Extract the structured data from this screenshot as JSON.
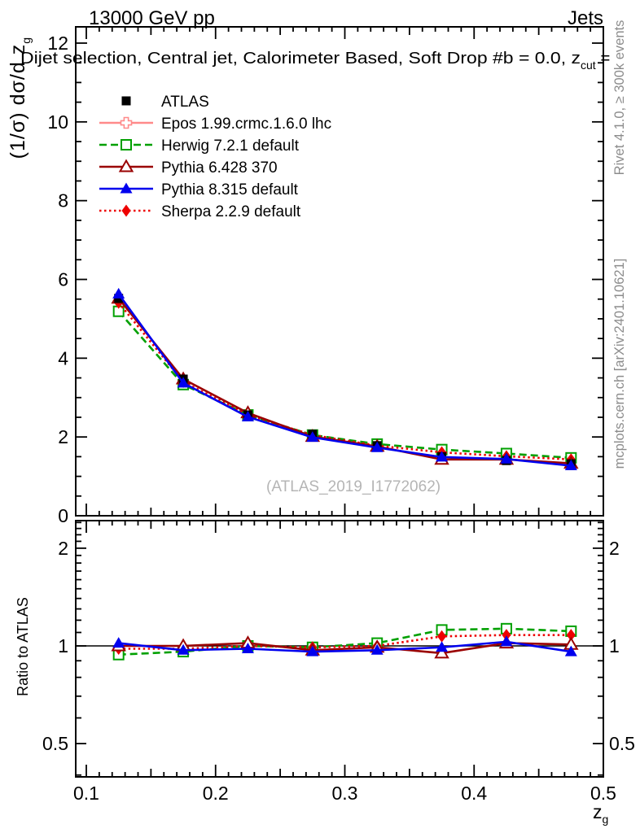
{
  "header": {
    "left_title": "13000 GeV pp",
    "right_title": "Jets"
  },
  "subtitle": {
    "text": "Dijet selection, Central jet, Calorimeter Based, Soft Drop #b = 0.0, z",
    "sub": "cut",
    "tail": " ="
  },
  "side_notes": {
    "top": "Rivet 4.1.0, ≥ 300k events",
    "bottom": "mcplots.cern.ch [arXiv:2401.10621]"
  },
  "watermark": "(ATLAS_2019_I1772062)",
  "chart_data": {
    "type": "line",
    "x": [
      0.125,
      0.175,
      0.225,
      0.275,
      0.325,
      0.375,
      0.425,
      0.475
    ],
    "xlim": [
      0.092,
      0.505
    ],
    "x_ticks": [
      0.1,
      0.2,
      0.3,
      0.4,
      0.5
    ],
    "xlabel_main": "z",
    "xlabel_sub": "g",
    "main_panel": {
      "ylabel_main": "(1/σ) dσ/d z",
      "ylabel_sub": "g",
      "ylim": [
        0,
        12.4
      ],
      "yticks": [
        0,
        2,
        4,
        6,
        8,
        10,
        12
      ],
      "grid": false
    },
    "ratio_panel": {
      "ylabel": "Ratio to ATLAS",
      "yscale": "log",
      "ylim": [
        0.39,
        2.45
      ],
      "yticks": [
        0.5,
        1,
        2
      ],
      "reference_line": 1
    },
    "series": [
      {
        "id": "atlas",
        "label": "ATLAS",
        "color": "#000000",
        "line": "none",
        "marker": "square-filled",
        "main_values": [
          5.52,
          3.47,
          2.56,
          2.07,
          1.78,
          1.5,
          1.4,
          1.32
        ],
        "ratio_values": null
      },
      {
        "id": "epos",
        "label": "Epos 1.99.crmc.1.6.0 lhc",
        "color": "#ff8a8a",
        "line": "solid",
        "marker": "plus-open",
        "main_values": null,
        "ratio_values": null
      },
      {
        "id": "herwig",
        "label": "Herwig 7.2.1 default",
        "color": "#00a000",
        "line": "dashed",
        "marker": "square-open",
        "main_values": [
          5.19,
          3.33,
          2.56,
          2.05,
          1.82,
          1.68,
          1.58,
          1.47
        ],
        "ratio_values": [
          0.94,
          0.96,
          1.0,
          0.99,
          1.02,
          1.12,
          1.13,
          1.11
        ]
      },
      {
        "id": "pythia6",
        "label": "Pythia 6.428 370",
        "color": "#9a0000",
        "line": "solid",
        "marker": "triangle-open",
        "main_values": [
          5.52,
          3.47,
          2.61,
          2.01,
          1.76,
          1.43,
          1.43,
          1.33
        ],
        "ratio_values": [
          1.0,
          1.0,
          1.02,
          0.97,
          0.99,
          0.95,
          1.02,
          1.01
        ]
      },
      {
        "id": "pythia8",
        "label": "Pythia 8.315 default",
        "color": "#0000ee",
        "line": "solid",
        "marker": "triangle-filled",
        "main_values": [
          5.63,
          3.37,
          2.51,
          1.99,
          1.73,
          1.49,
          1.44,
          1.27
        ],
        "ratio_values": [
          1.02,
          0.97,
          0.98,
          0.96,
          0.97,
          0.99,
          1.03,
          0.96
        ]
      },
      {
        "id": "sherpa",
        "label": "Sherpa 2.2.9 default",
        "color": "#ee0000",
        "line": "dotted",
        "marker": "diamond-filled",
        "main_values": [
          5.41,
          3.4,
          2.56,
          2.05,
          1.78,
          1.61,
          1.51,
          1.43
        ],
        "ratio_values": [
          0.98,
          0.98,
          1.0,
          0.99,
          1.0,
          1.07,
          1.08,
          1.08
        ]
      }
    ]
  }
}
